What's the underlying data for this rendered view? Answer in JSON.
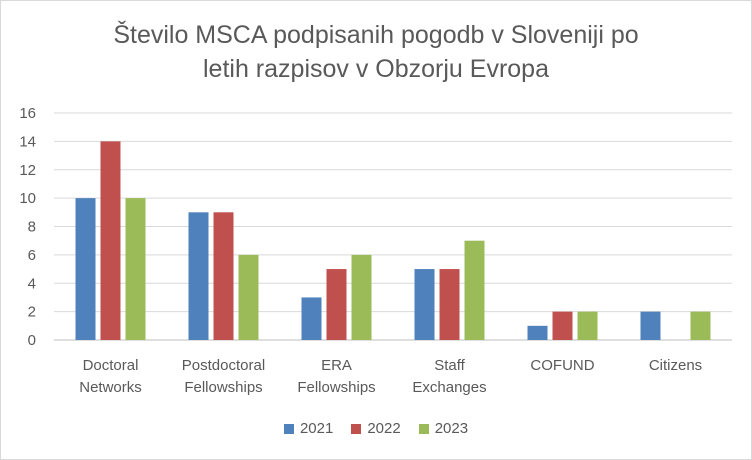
{
  "chart_data": {
    "type": "bar",
    "title": "Število MSCA podpisanih pogodb v Sloveniji po letih razpisov  v Obzorju Evropa",
    "title_lines": [
      "Število MSCA podpisanih pogodb v Sloveniji po",
      "letih razpisov  v Obzorju Evropa"
    ],
    "categories": [
      [
        "Doctoral",
        "Networks"
      ],
      [
        "Postdoctoral",
        "Fellowships"
      ],
      [
        "ERA",
        "Fellowships"
      ],
      [
        "Staff",
        "Exchanges"
      ],
      [
        "COFUND"
      ],
      [
        "Citizens"
      ]
    ],
    "series": [
      {
        "name": "2021",
        "color": "#4f81bd",
        "values": [
          10,
          9,
          3,
          5,
          1,
          2
        ]
      },
      {
        "name": "2022",
        "color": "#c0504d",
        "values": [
          14,
          9,
          5,
          5,
          2,
          0
        ]
      },
      {
        "name": "2023",
        "color": "#9bbb59",
        "values": [
          10,
          6,
          6,
          7,
          2,
          2
        ]
      }
    ],
    "ylim": [
      0,
      16
    ],
    "yticks": [
      0,
      2,
      4,
      6,
      8,
      10,
      12,
      14,
      16
    ],
    "grid": true,
    "legend_position": "bottom"
  }
}
